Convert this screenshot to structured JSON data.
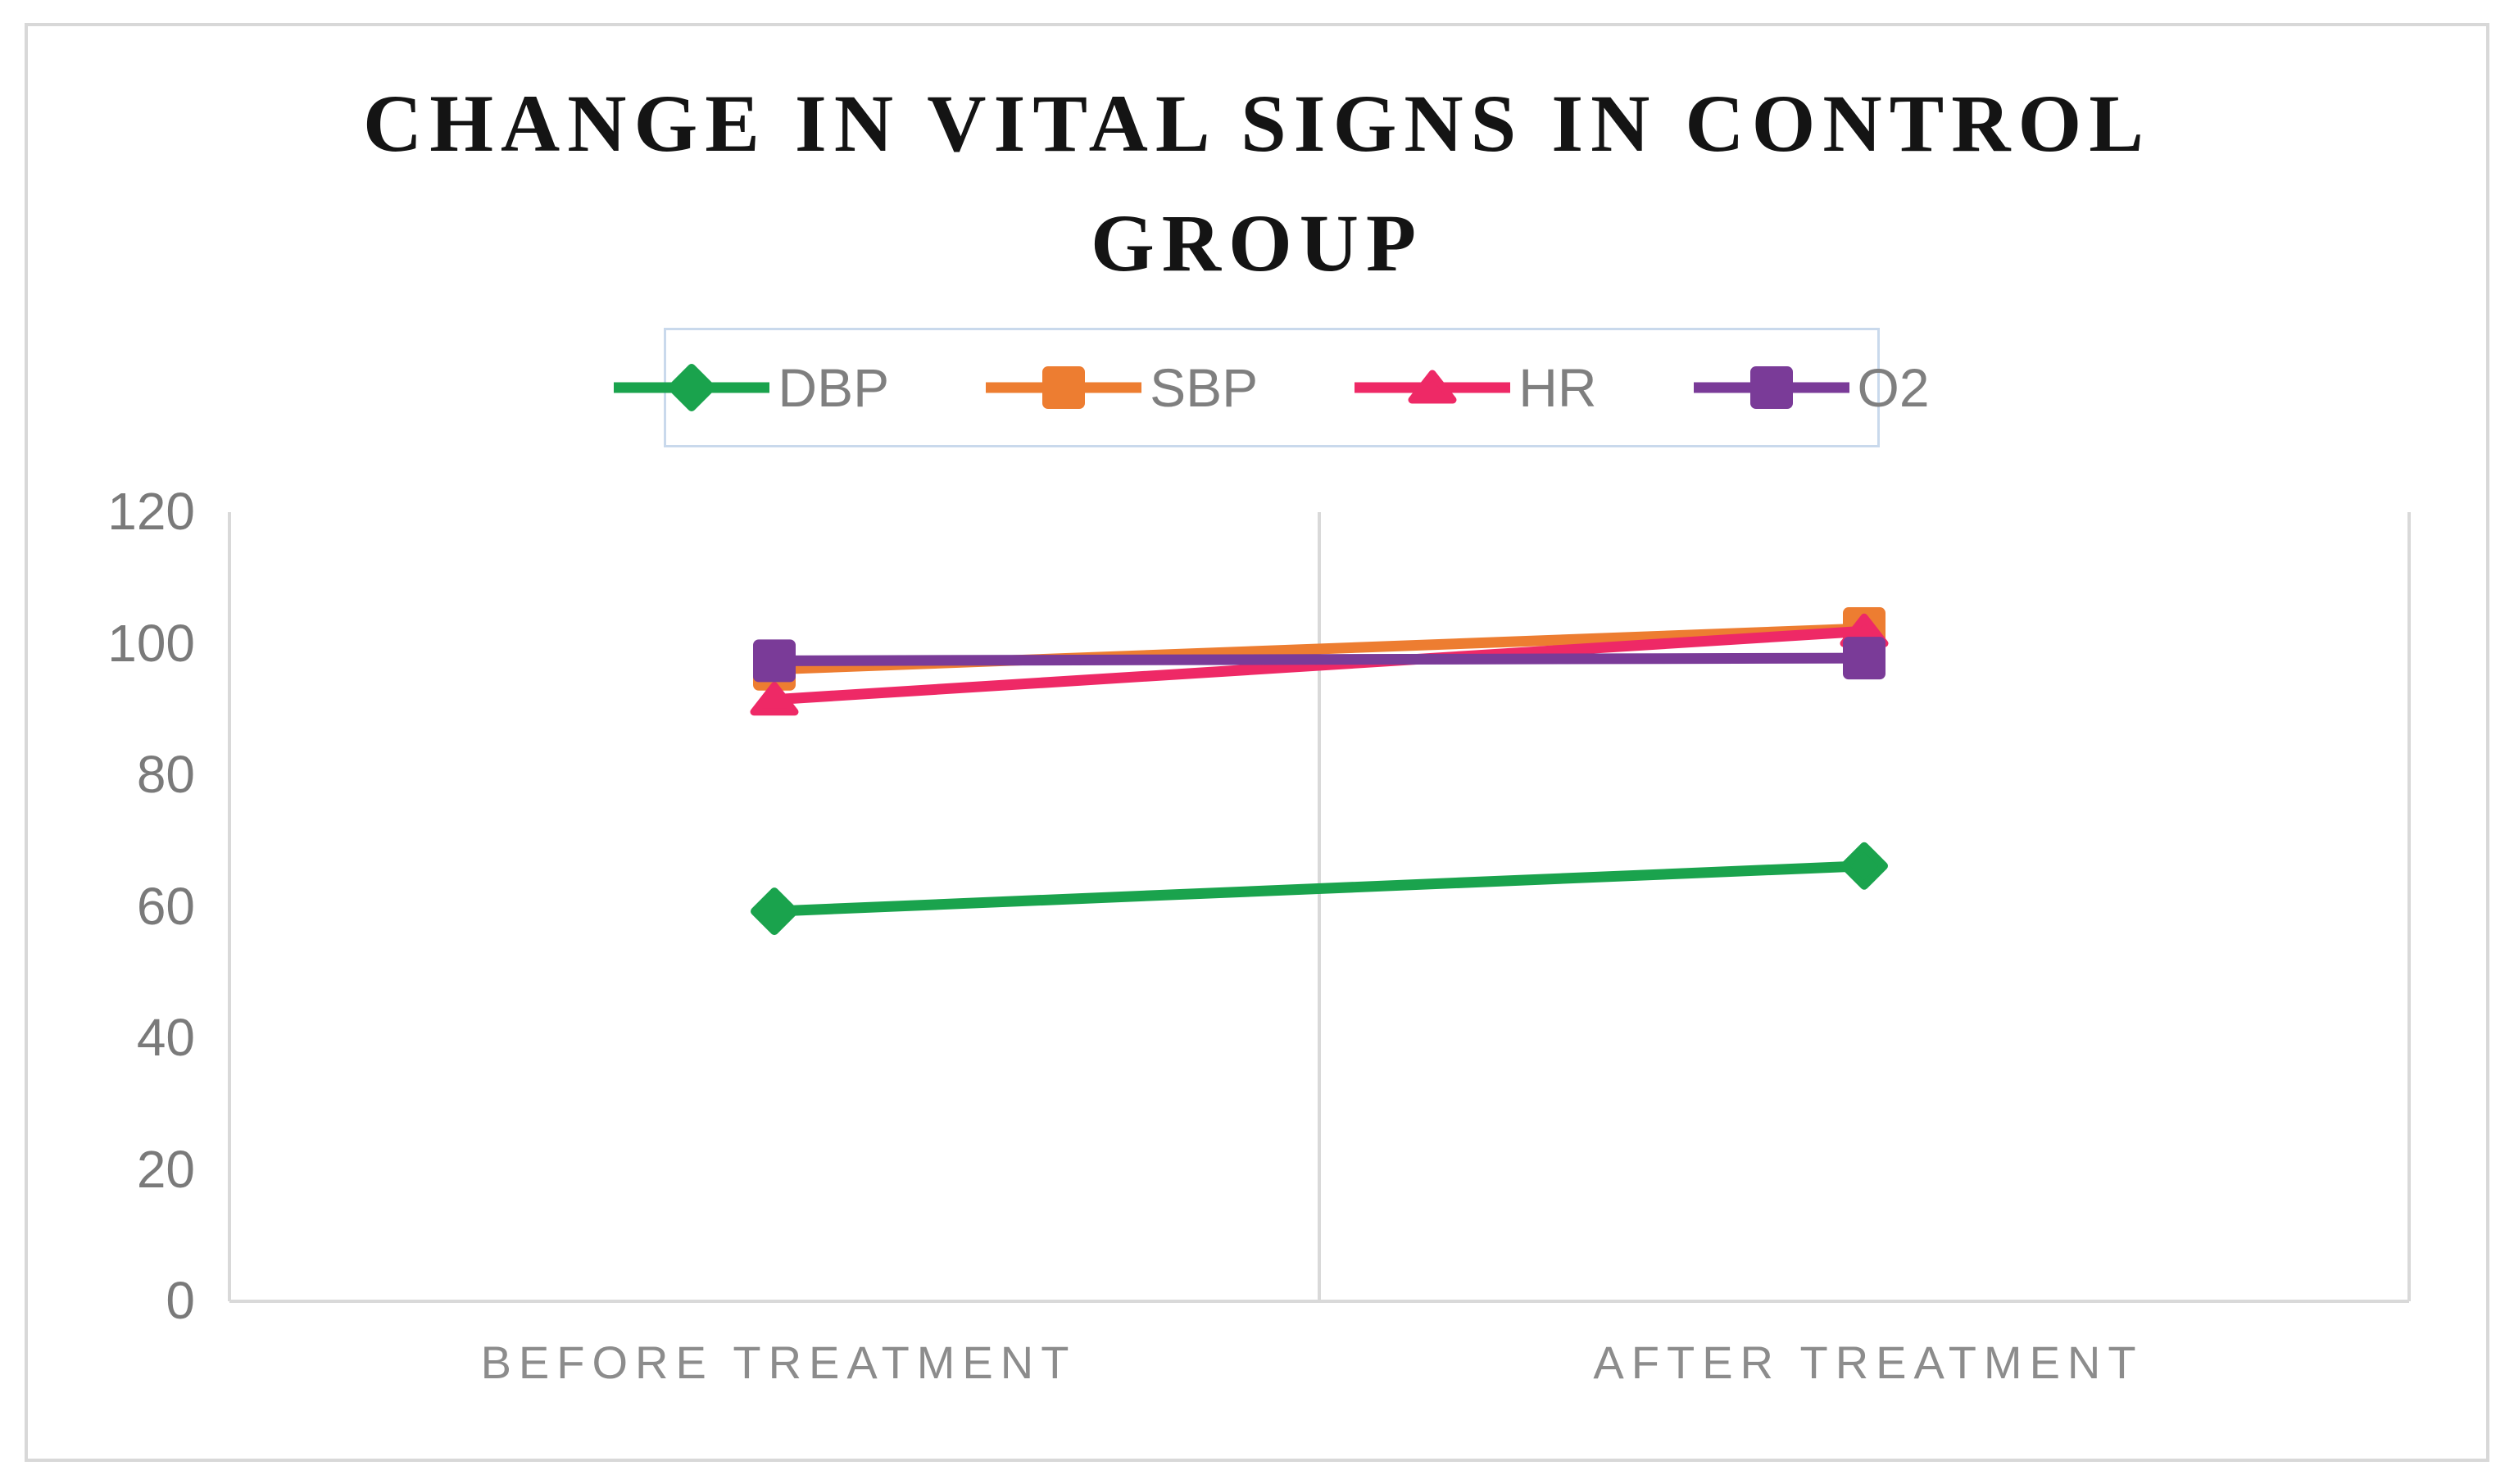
{
  "title": "CHANGE IN VITAL SIGNS IN CONTROL GROUP",
  "chart_data": {
    "type": "line",
    "categories": [
      "BEFORE TREATMENT",
      "AFTER TREATMENT"
    ],
    "series": [
      {
        "name": "DBP",
        "values": [
          59.3,
          66.2
        ],
        "color": "#1aa34d",
        "marker": "diamond"
      },
      {
        "name": "SBP",
        "values": [
          96.1,
          102.3
        ],
        "color": "#ed7d31",
        "marker": "square"
      },
      {
        "name": "HR",
        "values": [
          91.5,
          101.9
        ],
        "color": "#ee2966",
        "marker": "triangle"
      },
      {
        "name": "O2",
        "values": [
          97.4,
          97.8
        ],
        "color": "#7a3b98",
        "marker": "square"
      }
    ],
    "ylim": [
      0,
      120
    ],
    "yticks": [
      0,
      20,
      40,
      60,
      80,
      100,
      120
    ],
    "xlabel": "",
    "ylabel": "",
    "grid": "vertical-category-separators-only",
    "legend_position": "top"
  },
  "colors": {
    "gridline": "#d9d9d9",
    "axis_text": "#7a7a7a",
    "x_axis_text": "#8c8c8c",
    "legend_border": "#c9d9ec",
    "legend_text": "#7f7f7f",
    "figure_border": "#d8d8d8",
    "title_text": "#141414"
  }
}
